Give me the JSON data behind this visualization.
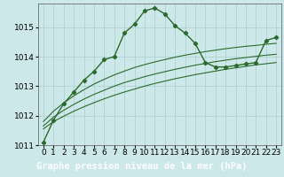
{
  "title": "Graphe pression niveau de la mer (hPa)",
  "x_hours": [
    0,
    1,
    2,
    3,
    4,
    5,
    6,
    7,
    8,
    9,
    10,
    11,
    12,
    13,
    14,
    15,
    16,
    17,
    18,
    19,
    20,
    21,
    22,
    23
  ],
  "main_line": [
    1011.1,
    1011.85,
    1012.4,
    1012.8,
    1013.2,
    1013.5,
    1013.9,
    1014.0,
    1014.8,
    1015.1,
    1015.55,
    1015.65,
    1015.45,
    1015.05,
    1014.8,
    1014.45,
    1013.8,
    1013.65,
    1013.65,
    1013.7,
    1013.75,
    1013.8,
    1014.55,
    1014.65
  ],
  "smooth_line1": [
    1011.55,
    1011.8,
    1011.98,
    1012.15,
    1012.3,
    1012.44,
    1012.57,
    1012.69,
    1012.8,
    1012.9,
    1013.0,
    1013.09,
    1013.17,
    1013.25,
    1013.32,
    1013.39,
    1013.45,
    1013.51,
    1013.57,
    1013.62,
    1013.67,
    1013.72,
    1013.76,
    1013.8
  ],
  "smooth_line2": [
    1011.65,
    1011.95,
    1012.18,
    1012.38,
    1012.56,
    1012.72,
    1012.86,
    1013.0,
    1013.12,
    1013.22,
    1013.32,
    1013.41,
    1013.49,
    1013.57,
    1013.64,
    1013.71,
    1013.77,
    1013.83,
    1013.88,
    1013.93,
    1013.97,
    1014.01,
    1014.05,
    1014.08
  ],
  "smooth_line3": [
    1011.8,
    1012.15,
    1012.43,
    1012.67,
    1012.88,
    1013.07,
    1013.23,
    1013.38,
    1013.51,
    1013.63,
    1013.73,
    1013.82,
    1013.9,
    1013.98,
    1014.05,
    1014.11,
    1014.17,
    1014.22,
    1014.27,
    1014.31,
    1014.35,
    1014.38,
    1014.42,
    1014.45
  ],
  "line_color": "#2d6a2d",
  "bg_color": "#cce8e8",
  "grid_color": "#aacece",
  "label_bg": "#2d6a2d",
  "label_fg": "#ffffff",
  "ylim": [
    1011.0,
    1015.8
  ],
  "yticks": [
    1011,
    1012,
    1013,
    1014,
    1015
  ],
  "tick_fontsize": 6.5,
  "label_fontsize": 7.5
}
